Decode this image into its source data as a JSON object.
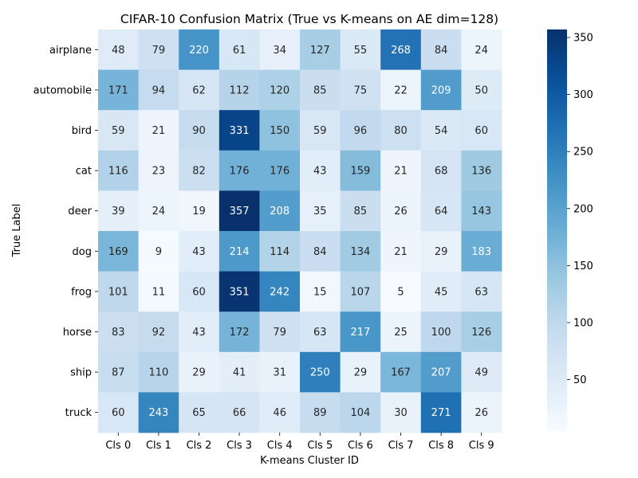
{
  "chart_data": {
    "type": "heatmap",
    "title": "CIFAR-10 Confusion Matrix (True vs K-means on AE dim=128)",
    "xlabel": "K-means Cluster ID",
    "ylabel": "True Label",
    "x_categories": [
      "Cls 0",
      "Cls 1",
      "Cls 2",
      "Cls 3",
      "Cls 4",
      "Cls 5",
      "Cls 6",
      "Cls 7",
      "Cls 8",
      "Cls 9"
    ],
    "y_categories": [
      "airplane",
      "automobile",
      "bird",
      "cat",
      "deer",
      "dog",
      "frog",
      "horse",
      "ship",
      "truck"
    ],
    "values": [
      [
        48,
        79,
        220,
        61,
        34,
        127,
        55,
        268,
        84,
        24
      ],
      [
        171,
        94,
        62,
        112,
        120,
        85,
        75,
        22,
        209,
        50
      ],
      [
        59,
        21,
        90,
        331,
        150,
        59,
        96,
        80,
        54,
        60
      ],
      [
        116,
        23,
        82,
        176,
        176,
        43,
        159,
        21,
        68,
        136
      ],
      [
        39,
        24,
        19,
        357,
        208,
        35,
        85,
        26,
        64,
        143
      ],
      [
        169,
        9,
        43,
        214,
        114,
        84,
        134,
        21,
        29,
        183
      ],
      [
        101,
        11,
        60,
        351,
        242,
        15,
        107,
        5,
        45,
        63
      ],
      [
        83,
        92,
        43,
        172,
        79,
        63,
        217,
        25,
        100,
        126
      ],
      [
        87,
        110,
        29,
        41,
        31,
        250,
        29,
        167,
        207,
        49
      ],
      [
        60,
        243,
        65,
        66,
        46,
        89,
        104,
        30,
        271,
        26
      ]
    ],
    "colormap": "Blues",
    "colorbar_ticks": [
      50,
      100,
      150,
      200,
      250,
      300,
      350
    ],
    "vmin": 5,
    "vmax": 357
  }
}
